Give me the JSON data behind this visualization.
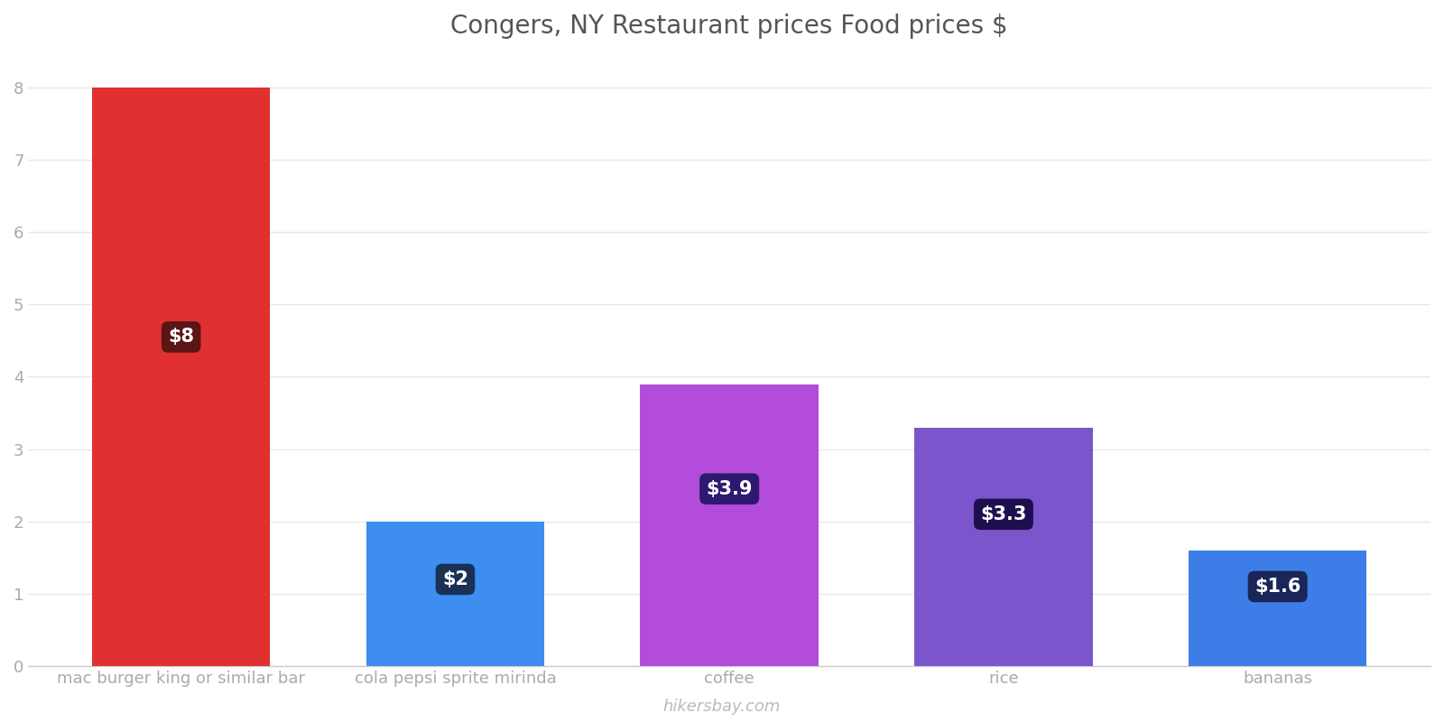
{
  "title": "Congers, NY Restaurant prices Food prices $",
  "categories": [
    "mac burger king or similar bar",
    "cola pepsi sprite mirinda",
    "coffee",
    "rice",
    "bananas"
  ],
  "values": [
    8.0,
    2.0,
    3.9,
    3.3,
    1.6
  ],
  "labels": [
    "$8",
    "$2",
    "$3.9",
    "$3.3",
    "$1.6"
  ],
  "bar_colors": [
    "#e03030",
    "#3d8ef0",
    "#b44cdb",
    "#7b55cc",
    "#3d7de8"
  ],
  "label_box_colors": [
    "#5a1515",
    "#1a3055",
    "#2e1870",
    "#1e1050",
    "#1a2558"
  ],
  "ylim": [
    0,
    8.4
  ],
  "yticks": [
    0,
    1,
    2,
    3,
    4,
    5,
    6,
    7,
    8
  ],
  "title_fontsize": 20,
  "tick_fontsize": 13,
  "label_fontsize": 15,
  "watermark": "hikersbay.com",
  "background_color": "#ffffff",
  "label_positions_y": [
    4.55,
    1.2,
    2.45,
    2.1,
    1.1
  ]
}
